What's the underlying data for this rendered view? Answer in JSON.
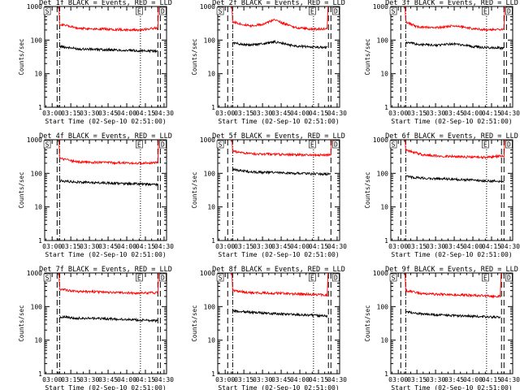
{
  "colors": {
    "events": "#000000",
    "lld": "#ff0000",
    "axes": "#000000",
    "background": "#ffffff"
  },
  "shared": {
    "ylabel": "Counts/sec",
    "xlabel": "Start Time (02-Sep-10 02:51:00)",
    "x_tick_labels": [
      "03:00",
      "03:15",
      "03:30",
      "03:45",
      "04:00",
      "04:15",
      "04:30"
    ],
    "y_tick_labels": [
      "1",
      "10",
      "100",
      "1000"
    ],
    "y_scale": "log",
    "ylim": [
      1,
      1000
    ],
    "xlim": [
      "02:54",
      "04:32"
    ]
  },
  "chart_data": [
    {
      "type": "line",
      "title": "Det 1f BLACK = Events, RED = LLD",
      "markers": {
        "S": "02:56",
        "E": "04:10",
        "D": "04:29"
      },
      "vlines": {
        "dash": [
          "03:04",
          "04:25",
          "04:27"
        ],
        "dashdot": [
          "03:06"
        ],
        "dot": [
          "04:11"
        ]
      },
      "series": [
        {
          "color": "#ff0000",
          "x": [
            "03:06",
            "03:20",
            "03:40",
            "03:55",
            "04:10",
            "04:25"
          ],
          "y": [
            300,
            225,
            215,
            205,
            200,
            230
          ]
        },
        {
          "color": "#000000",
          "x": [
            "03:06",
            "03:20",
            "03:40",
            "03:55",
            "04:10",
            "04:25"
          ],
          "y": [
            65,
            55,
            52,
            50,
            48,
            47
          ]
        }
      ]
    },
    {
      "type": "line",
      "title": "Det 2f BLACK = Events, RED = LLD",
      "markers": {
        "S": "02:56",
        "E": "04:10",
        "D": "04:29"
      },
      "vlines": {
        "dash": [
          "03:02",
          "04:23",
          "04:25"
        ],
        "dashdot": [
          "03:06"
        ],
        "dot": [
          "04:11"
        ]
      },
      "series": [
        {
          "color": "#ff0000",
          "x": [
            "03:06",
            "03:20",
            "03:30",
            "03:40",
            "03:55",
            "04:10",
            "04:22"
          ],
          "y": [
            350,
            260,
            300,
            400,
            240,
            210,
            220
          ]
        },
        {
          "color": "#000000",
          "x": [
            "03:06",
            "03:20",
            "03:30",
            "03:40",
            "03:55",
            "04:10",
            "04:22"
          ],
          "y": [
            82,
            70,
            78,
            88,
            68,
            62,
            60
          ]
        }
      ]
    },
    {
      "type": "line",
      "title": "Det 3f BLACK = Events, RED = LLD",
      "markers": {
        "S": "02:56",
        "E": "04:10",
        "D": "04:29"
      },
      "vlines": {
        "dash": [
          "03:02",
          "04:25",
          "04:27"
        ],
        "dashdot": [
          "03:06"
        ],
        "dot": [
          "04:11"
        ]
      },
      "series": [
        {
          "color": "#ff0000",
          "x": [
            "03:06",
            "03:15",
            "03:30",
            "03:45",
            "04:00",
            "04:10",
            "04:25"
          ],
          "y": [
            350,
            250,
            230,
            270,
            220,
            200,
            210
          ]
        },
        {
          "color": "#000000",
          "x": [
            "03:06",
            "03:15",
            "03:30",
            "03:45",
            "04:00",
            "04:10",
            "04:25"
          ],
          "y": [
            85,
            75,
            70,
            78,
            64,
            60,
            58
          ]
        }
      ]
    },
    {
      "type": "line",
      "title": "Det 4f BLACK = Events, RED = LLD",
      "markers": {
        "S": "02:56",
        "E": "04:10",
        "D": "04:29"
      },
      "vlines": {
        "dash": [
          "03:04",
          "04:25",
          "04:27"
        ],
        "dashdot": [
          "03:06"
        ],
        "dot": [
          "04:11"
        ]
      },
      "series": [
        {
          "color": "#ff0000",
          "x": [
            "03:06",
            "03:20",
            "03:40",
            "03:55",
            "04:10",
            "04:25"
          ],
          "y": [
            280,
            220,
            210,
            205,
            200,
            210
          ]
        },
        {
          "color": "#000000",
          "x": [
            "03:06",
            "03:20",
            "03:40",
            "03:55",
            "04:10",
            "04:25"
          ],
          "y": [
            60,
            55,
            52,
            50,
            48,
            46
          ]
        }
      ]
    },
    {
      "type": "line",
      "title": "Det 5f BLACK = Events, RED = LLD",
      "markers": {
        "S": "02:56",
        "E": "04:10",
        "D": "04:29"
      },
      "vlines": {
        "dash": [
          "03:02",
          "04:25"
        ],
        "dashdot": [
          "03:06"
        ],
        "dot": [
          "04:11"
        ]
      },
      "series": [
        {
          "color": "#ff0000",
          "x": [
            "03:06",
            "03:20",
            "03:40",
            "03:55",
            "04:10",
            "04:25"
          ],
          "y": [
            450,
            380,
            370,
            360,
            350,
            360
          ]
        },
        {
          "color": "#000000",
          "x": [
            "03:06",
            "03:20",
            "03:40",
            "03:55",
            "04:10",
            "04:25"
          ],
          "y": [
            130,
            110,
            105,
            100,
            97,
            95
          ]
        }
      ]
    },
    {
      "type": "line",
      "title": "Det 6f BLACK = Events, RED = LLD",
      "markers": {
        "S": "02:56",
        "E": "04:10",
        "D": "04:29"
      },
      "vlines": {
        "dash": [
          "03:02",
          "04:23",
          "04:25"
        ],
        "dashdot": [
          "03:06"
        ],
        "dot": [
          "04:11"
        ]
      },
      "series": [
        {
          "color": "#ff0000",
          "x": [
            "03:06",
            "03:20",
            "03:40",
            "03:55",
            "04:10",
            "04:25"
          ],
          "y": [
            500,
            350,
            320,
            310,
            300,
            330
          ]
        },
        {
          "color": "#000000",
          "x": [
            "03:06",
            "03:20",
            "03:40",
            "03:55",
            "04:10",
            "04:25"
          ],
          "y": [
            80,
            72,
            68,
            64,
            60,
            58
          ]
        }
      ]
    },
    {
      "type": "line",
      "title": "Det 7f BLACK = Events, RED = LLD",
      "markers": {
        "S": "02:56",
        "E": "04:10",
        "D": "04:29"
      },
      "vlines": {
        "dash": [
          "03:04",
          "04:25",
          "04:27"
        ],
        "dashdot": [
          "03:06"
        ],
        "dot": [
          "04:11"
        ]
      },
      "series": [
        {
          "color": "#ff0000",
          "x": [
            "03:06",
            "03:20",
            "03:40",
            "03:55",
            "04:10",
            "04:25"
          ],
          "y": [
            330,
            280,
            270,
            260,
            250,
            260
          ]
        },
        {
          "color": "#000000",
          "x": [
            "03:06",
            "03:20",
            "03:40",
            "03:55",
            "04:10",
            "04:25"
          ],
          "y": [
            50,
            45,
            44,
            42,
            40,
            38
          ]
        }
      ]
    },
    {
      "type": "line",
      "title": "Det 8f BLACK = Events, RED = LLD",
      "markers": {
        "S": "02:56",
        "E": "04:10",
        "D": "04:29"
      },
      "vlines": {
        "dash": [
          "03:02",
          "04:23",
          "04:25"
        ],
        "dashdot": [
          "03:06"
        ],
        "dot": [
          "04:11"
        ]
      },
      "series": [
        {
          "color": "#ff0000",
          "x": [
            "03:06",
            "03:20",
            "03:40",
            "03:55",
            "04:10",
            "04:22"
          ],
          "y": [
            300,
            260,
            250,
            240,
            230,
            220
          ]
        },
        {
          "color": "#000000",
          "x": [
            "03:06",
            "03:20",
            "03:40",
            "03:55",
            "04:10",
            "04:22"
          ],
          "y": [
            75,
            68,
            62,
            58,
            55,
            52
          ]
        }
      ]
    },
    {
      "type": "line",
      "title": "Det 9f BLACK = Events, RED = LLD",
      "markers": {
        "S": "02:56",
        "E": "04:10",
        "D": "04:29"
      },
      "vlines": {
        "dash": [
          "03:02",
          "04:23",
          "04:25"
        ],
        "dashdot": [
          "03:06"
        ],
        "dot": [
          "04:11"
        ]
      },
      "series": [
        {
          "color": "#ff0000",
          "x": [
            "03:06",
            "03:20",
            "03:40",
            "03:55",
            "04:10",
            "04:22"
          ],
          "y": [
            300,
            240,
            230,
            220,
            210,
            200
          ]
        },
        {
          "color": "#000000",
          "x": [
            "03:06",
            "03:20",
            "03:40",
            "03:55",
            "04:10",
            "04:22"
          ],
          "y": [
            70,
            60,
            55,
            52,
            50,
            48
          ]
        }
      ]
    }
  ]
}
